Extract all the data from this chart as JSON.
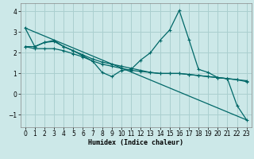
{
  "xlabel": "Humidex (Indice chaleur)",
  "background_color": "#cce8e8",
  "grid_color": "#aacfcf",
  "line_color": "#006868",
  "xlim": [
    -0.5,
    23.5
  ],
  "ylim": [
    -1.6,
    4.4
  ],
  "yticks": [
    -1,
    0,
    1,
    2,
    3,
    4
  ],
  "xticks": [
    0,
    1,
    2,
    3,
    4,
    5,
    6,
    7,
    8,
    9,
    10,
    11,
    12,
    13,
    14,
    15,
    16,
    17,
    18,
    19,
    20,
    21,
    22,
    23
  ],
  "lines": [
    {
      "x": [
        0,
        1,
        2,
        3,
        4,
        5,
        6,
        7,
        8,
        9,
        10,
        11,
        12,
        13,
        14,
        15,
        16,
        17,
        18,
        19,
        20,
        21,
        22,
        23
      ],
      "y": [
        3.2,
        2.3,
        2.5,
        2.6,
        2.3,
        2.1,
        1.85,
        1.6,
        1.05,
        0.85,
        1.15,
        1.2,
        1.65,
        2.0,
        2.6,
        3.1,
        4.05,
        2.65,
        1.2,
        1.05,
        0.8,
        0.75,
        -0.55,
        -1.25
      ],
      "marker": true
    },
    {
      "x": [
        0,
        1,
        2,
        3,
        4,
        5,
        6,
        7,
        8,
        9,
        10,
        11,
        12,
        13,
        14,
        15,
        16,
        17,
        18,
        19,
        20,
        21,
        22,
        23
      ],
      "y": [
        2.3,
        2.3,
        2.5,
        2.55,
        2.3,
        2.1,
        1.9,
        1.7,
        1.55,
        1.45,
        1.35,
        1.25,
        1.15,
        1.05,
        1.0,
        1.0,
        1.0,
        0.95,
        0.9,
        0.85,
        0.8,
        0.75,
        0.7,
        0.65
      ],
      "marker": true
    },
    {
      "x": [
        0,
        23
      ],
      "y": [
        3.2,
        -1.25
      ],
      "marker": false
    },
    {
      "x": [
        0,
        1,
        2,
        3,
        4,
        5,
        6,
        7,
        8,
        9,
        10,
        11,
        12,
        13,
        14,
        15,
        16,
        17,
        18,
        19,
        20,
        21,
        22,
        23
      ],
      "y": [
        2.3,
        2.2,
        2.2,
        2.2,
        2.1,
        1.95,
        1.8,
        1.6,
        1.45,
        1.35,
        1.25,
        1.15,
        1.1,
        1.05,
        1.0,
        1.0,
        1.0,
        0.95,
        0.9,
        0.85,
        0.8,
        0.75,
        0.7,
        0.6
      ],
      "marker": true
    }
  ]
}
